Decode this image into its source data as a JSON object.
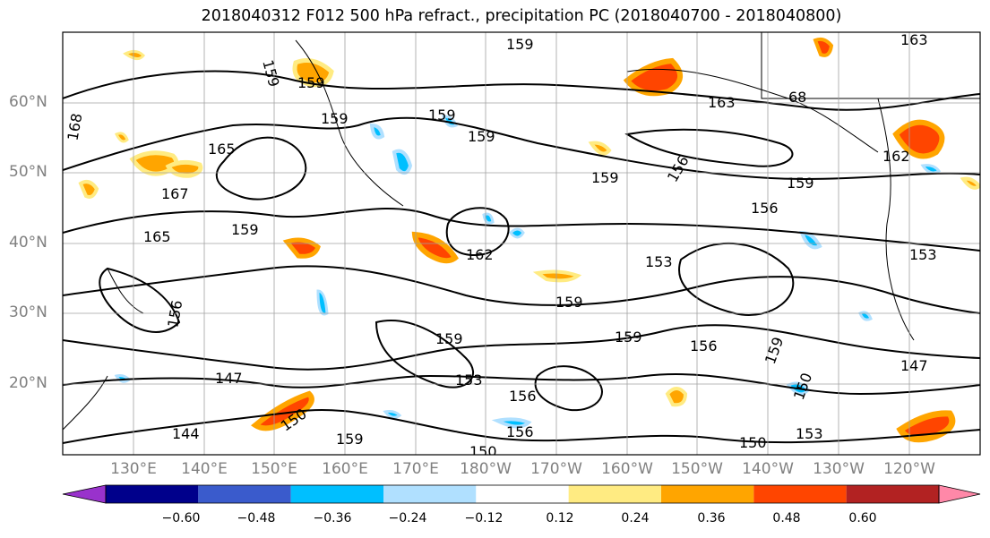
{
  "title": "2018040312 F012 500 hPa refract., precipitation PC (2018040700 - 2018040800)",
  "lat_labels": [
    "60°N",
    "50°N",
    "40°N",
    "30°N",
    "20°N"
  ],
  "lon_labels": [
    "130°E",
    "140°E",
    "150°E",
    "160°E",
    "170°E",
    "180°W",
    "170°W",
    "160°W",
    "150°W",
    "140°W",
    "130°W",
    "120°W"
  ],
  "contour_labels": [
    "168",
    "159",
    "159",
    "165",
    "159",
    "159",
    "159",
    "167",
    "159",
    "159",
    "156",
    "163",
    "162",
    "159",
    "156",
    "68",
    "159",
    "162",
    "153",
    "153",
    "156",
    "150",
    "159",
    "159",
    "159",
    "156",
    "153",
    "156",
    "147",
    "150",
    "147",
    "144",
    "159",
    "150",
    "156",
    "153",
    "163",
    "165",
    "150",
    "159"
  ],
  "colorbar": {
    "ticks": [
      "−0.60",
      "−0.48",
      "−0.36",
      "−0.24",
      "−0.12",
      "0.12",
      "0.24",
      "0.36",
      "0.48",
      "0.60"
    ],
    "colors": [
      "#9932cc",
      "#00008b",
      "#3a5bcc",
      "#00bfff",
      "#b0e0ff",
      "#ffffff",
      "#ffeb82",
      "#ffa500",
      "#ff4500",
      "#b22222",
      "#ff88a8"
    ]
  },
  "legend_colors": {
    "contour": "#000000",
    "grid": "#a0a0a0",
    "coast": "#000000"
  }
}
